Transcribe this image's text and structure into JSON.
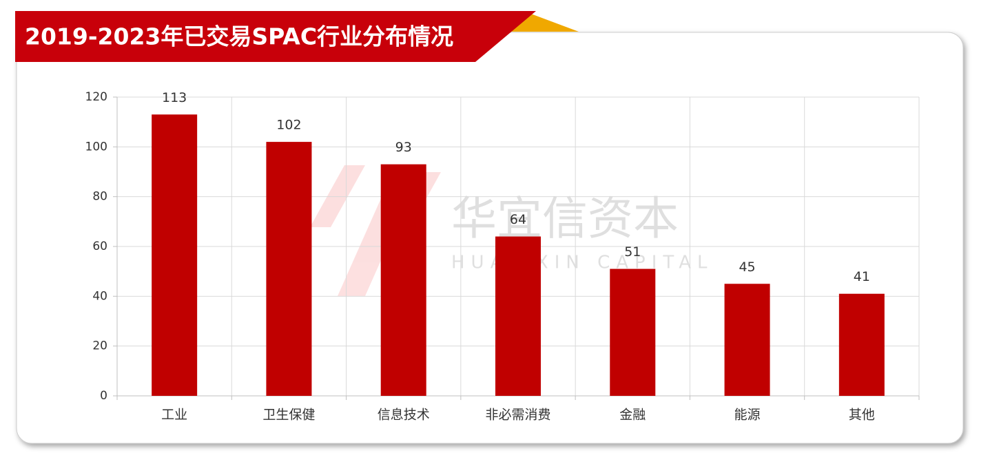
{
  "chart_data": {
    "type": "bar",
    "title": "2019-2023年已交易SPAC行业分布情况",
    "watermark": "华宜信资本",
    "watermark_subtitle": "HUAYIXIN CAPITAL",
    "categories": [
      "工业",
      "卫生保健",
      "信息技术",
      "非必需消费",
      "金融",
      "能源",
      "其他"
    ],
    "values": [
      113,
      102,
      93,
      64,
      51,
      45,
      41
    ],
    "color": "#c00000",
    "ylim": [
      0,
      120
    ],
    "yticks": [
      0,
      20,
      40,
      60,
      80,
      100,
      120
    ],
    "grid": true
  }
}
